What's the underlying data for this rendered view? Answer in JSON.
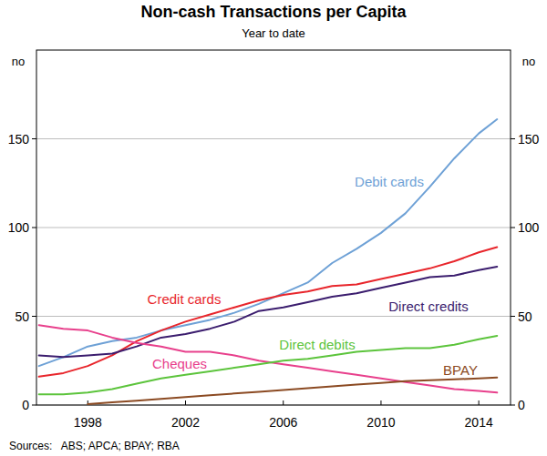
{
  "chart_data": {
    "type": "line",
    "title": "Non-cash Transactions per Capita",
    "subtitle": "Year to date",
    "y_label": "no",
    "source": "Sources:   ABS; APCA; BPAY; RBA",
    "x": [
      1996,
      1997,
      1998,
      1999,
      2000,
      2001,
      2002,
      2003,
      2004,
      2005,
      2006,
      2007,
      2008,
      2009,
      2010,
      2011,
      2012,
      2013,
      2014,
      2014.75
    ],
    "xlim": [
      1995.9,
      2015.3
    ],
    "xticks": [
      1998,
      2002,
      2006,
      2010,
      2014
    ],
    "ylim": [
      0,
      200
    ],
    "yticks": [
      0,
      50,
      100,
      150
    ],
    "grid": true,
    "series": [
      {
        "name": "Debit cards",
        "color": "#6ea1d6",
        "values": [
          22,
          27,
          33,
          36,
          38,
          42,
          45,
          48,
          52,
          57,
          63,
          69,
          80,
          88,
          97,
          108,
          123,
          139,
          153,
          161
        ]
      },
      {
        "name": "Credit cards",
        "color": "#e8262c",
        "values": [
          16,
          18,
          22,
          28,
          36,
          42,
          47,
          51,
          55,
          59,
          62,
          64,
          67,
          68,
          71,
          74,
          77,
          81,
          86,
          89
        ]
      },
      {
        "name": "Direct credits",
        "color": "#3b1d6e",
        "values": [
          28,
          27,
          28,
          29,
          33,
          38,
          40,
          43,
          47,
          53,
          55,
          58,
          61,
          63,
          66,
          69,
          72,
          73,
          76,
          78
        ]
      },
      {
        "name": "Cheques",
        "color": "#e8408c",
        "values": [
          45,
          43,
          42,
          38,
          35,
          33,
          30,
          30,
          28,
          25,
          23,
          21,
          19,
          17,
          15,
          13,
          11,
          9,
          8,
          7
        ]
      },
      {
        "name": "Direct debits",
        "color": "#5cc43c",
        "values": [
          6,
          6,
          7,
          9,
          12,
          15,
          17,
          19,
          21,
          23,
          25,
          26,
          28,
          30,
          31,
          32,
          32,
          34,
          37,
          39
        ]
      },
      {
        "name": "BPAY",
        "color": "#8b4a22",
        "values": [
          null,
          null,
          0.5,
          1.5,
          2.5,
          3.5,
          4.5,
          5.5,
          6.5,
          7.5,
          8.5,
          9.5,
          10.5,
          11.5,
          12.5,
          13.5,
          14,
          14.5,
          15,
          15.5
        ]
      }
    ]
  }
}
